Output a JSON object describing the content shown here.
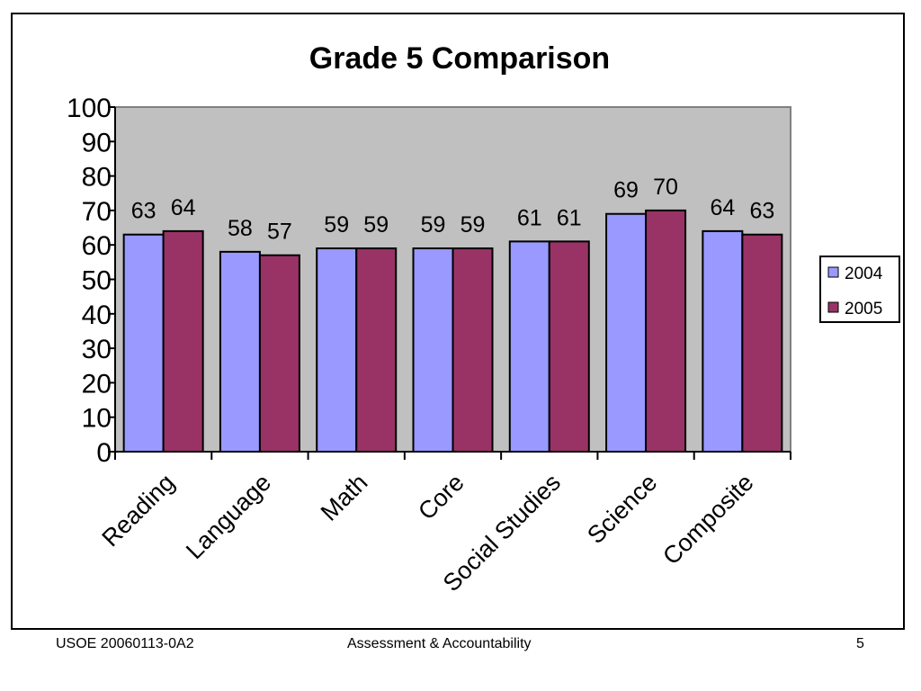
{
  "chart_data": {
    "type": "bar",
    "title": "Grade 5 Comparison",
    "categories": [
      "Reading",
      "Language",
      "Math",
      "Core",
      "Social Studies",
      "Science",
      "Composite"
    ],
    "series": [
      {
        "name": "2004",
        "values": [
          63,
          58,
          59,
          59,
          61,
          69,
          64
        ],
        "color": "#9999ff"
      },
      {
        "name": "2005",
        "values": [
          64,
          57,
          59,
          59,
          61,
          70,
          63
        ],
        "color": "#993366"
      }
    ],
    "ylim": [
      0,
      100
    ],
    "yticks": [
      0,
      10,
      20,
      30,
      40,
      50,
      60,
      70,
      80,
      90,
      100
    ],
    "plot_background": "#c0c0c0",
    "legend_position": "right",
    "grid": false,
    "data_labels": true
  },
  "footer": {
    "left": "USOE 20060113-0A2",
    "center": "Assessment & Accountability",
    "right": "5"
  }
}
